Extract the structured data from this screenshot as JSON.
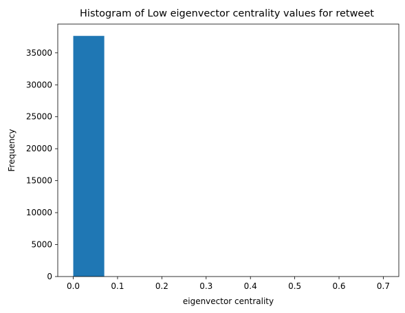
{
  "chart_data": {
    "type": "bar",
    "title": "Histogram of Low eigenvector centrality values for retweet",
    "xlabel": "eigenvector centrality",
    "ylabel": "Frequency",
    "xlim": [
      -0.035,
      0.735
    ],
    "ylim": [
      0,
      39500
    ],
    "xticks": [
      0.0,
      0.1,
      0.2,
      0.3,
      0.4,
      0.5,
      0.6,
      0.7
    ],
    "xtick_labels": [
      "0.0",
      "0.1",
      "0.2",
      "0.3",
      "0.4",
      "0.5",
      "0.6",
      "0.7"
    ],
    "yticks": [
      0,
      5000,
      10000,
      15000,
      20000,
      25000,
      30000,
      35000
    ],
    "ytick_labels": [
      "0",
      "5000",
      "10000",
      "15000",
      "20000",
      "25000",
      "30000",
      "35000"
    ],
    "bins": [
      {
        "x0": 0.0,
        "x1": 0.07,
        "value": 37650
      },
      {
        "x0": 0.07,
        "x1": 0.14,
        "value": 0
      },
      {
        "x0": 0.14,
        "x1": 0.21,
        "value": 0
      },
      {
        "x0": 0.21,
        "x1": 0.28,
        "value": 0
      },
      {
        "x0": 0.28,
        "x1": 0.35,
        "value": 0
      },
      {
        "x0": 0.35,
        "x1": 0.42,
        "value": 0
      },
      {
        "x0": 0.42,
        "x1": 0.49,
        "value": 0
      },
      {
        "x0": 0.49,
        "x1": 0.56,
        "value": 0
      },
      {
        "x0": 0.56,
        "x1": 0.63,
        "value": 0
      },
      {
        "x0": 0.63,
        "x1": 0.7,
        "value": 1
      }
    ],
    "bar_color": "#1f77b4",
    "grid": false,
    "legend": "none"
  }
}
